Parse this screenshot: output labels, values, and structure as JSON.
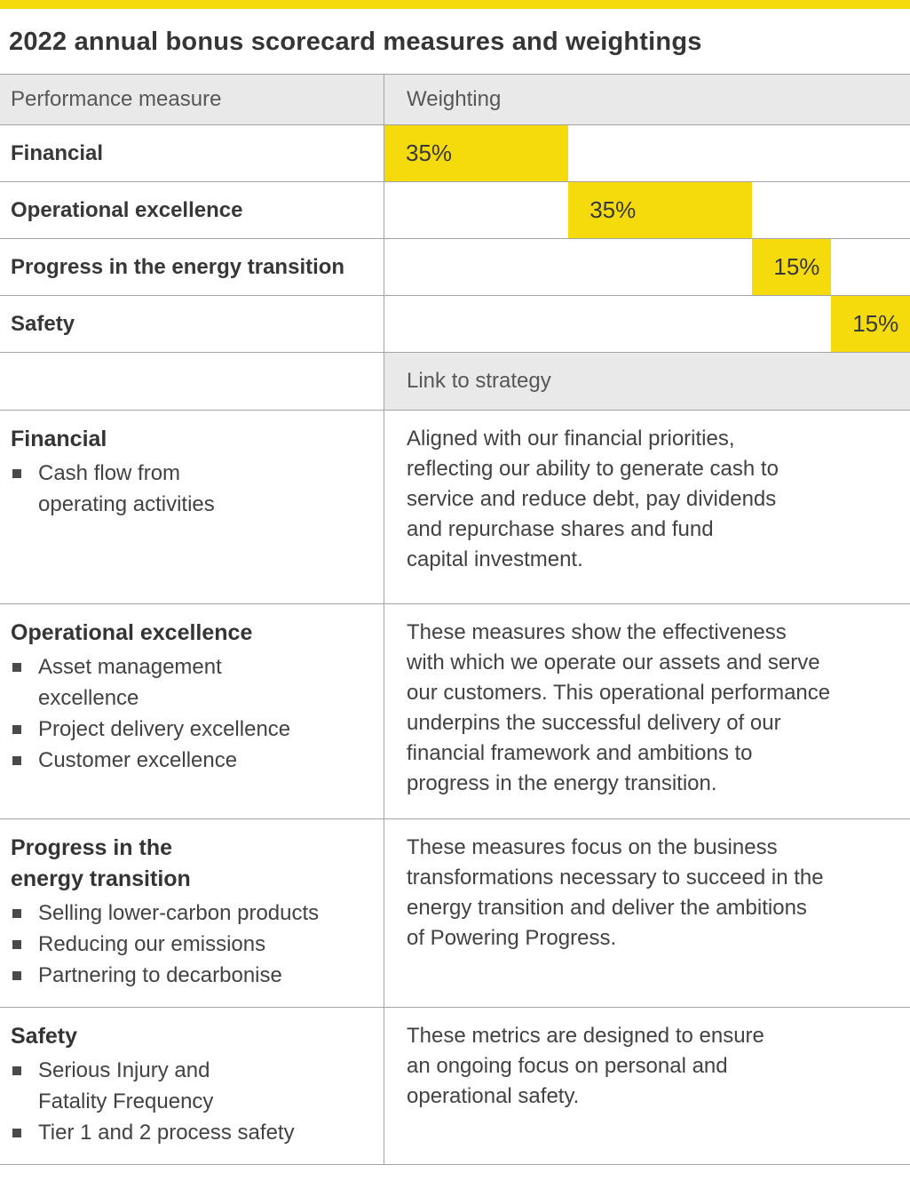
{
  "title": "2022 annual bonus scorecard measures and weightings",
  "colors": {
    "accent_yellow": "#F5DB0C",
    "header_bg": "#E9E9E9",
    "text": "#3E3E3E",
    "border": "#A3A3A3"
  },
  "headers": {
    "performance_measure": "Performance measure",
    "weighting": "Weighting",
    "link_to_strategy": "Link to strategy"
  },
  "weighting_rows": [
    {
      "measure": "Financial",
      "weight_label": "35%",
      "value": 35,
      "start": 0
    },
    {
      "measure": "Operational excellence",
      "weight_label": "35%",
      "value": 35,
      "start": 35
    },
    {
      "measure": "Progress in the energy transition",
      "weight_label": "15%",
      "value": 15,
      "start": 70
    },
    {
      "measure": "Safety",
      "weight_label": "15%",
      "value": 15,
      "start": 85
    }
  ],
  "strategy_rows": [
    {
      "measure": "Financial",
      "bullets": [
        "Cash flow from\noperating activities"
      ],
      "strategy": "Aligned with our financial priorities,\nreflecting our ability to generate cash to\nservice and reduce debt, pay dividends\nand repurchase shares and fund\ncapital investment."
    },
    {
      "measure": "Operational excellence",
      "bullets": [
        "Asset management\nexcellence",
        "Project delivery excellence",
        "Customer excellence"
      ],
      "strategy": "These measures show the effectiveness\nwith which we operate our assets and serve\nour customers. This operational performance\nunderpins the successful delivery of our\nfinancial framework and ambitions to\nprogress in the energy transition."
    },
    {
      "measure": "Progress in the\nenergy transition",
      "bullets": [
        "Selling lower-carbon products",
        "Reducing our emissions",
        "Partnering to decarbonise"
      ],
      "strategy": "These measures focus on the business\ntransformations necessary to succeed in the\nenergy transition and deliver the ambitions\nof Powering Progress."
    },
    {
      "measure": "Safety",
      "bullets": [
        "Serious Injury and\nFatality Frequency",
        "Tier 1 and 2 process safety"
      ],
      "strategy": "These metrics are designed to ensure\nan ongoing focus on personal and\noperational safety."
    }
  ],
  "chart_data": {
    "type": "bar",
    "title": "2022 annual bonus scorecard measures and weightings",
    "categories": [
      "Financial",
      "Operational excellence",
      "Progress in the energy transition",
      "Safety"
    ],
    "values": [
      35,
      35,
      15,
      15
    ],
    "value_labels": [
      "35%",
      "35%",
      "15%",
      "15%"
    ],
    "xlabel": "Weighting",
    "ylabel": "Performance measure",
    "xlim": [
      0,
      100
    ],
    "bar_color": "#F5DB0C",
    "layout": "horizontal bars in table rows; each bar starts where the previous bar ends (stacked offsets summing to 100%)",
    "grid": false,
    "legend": false
  }
}
